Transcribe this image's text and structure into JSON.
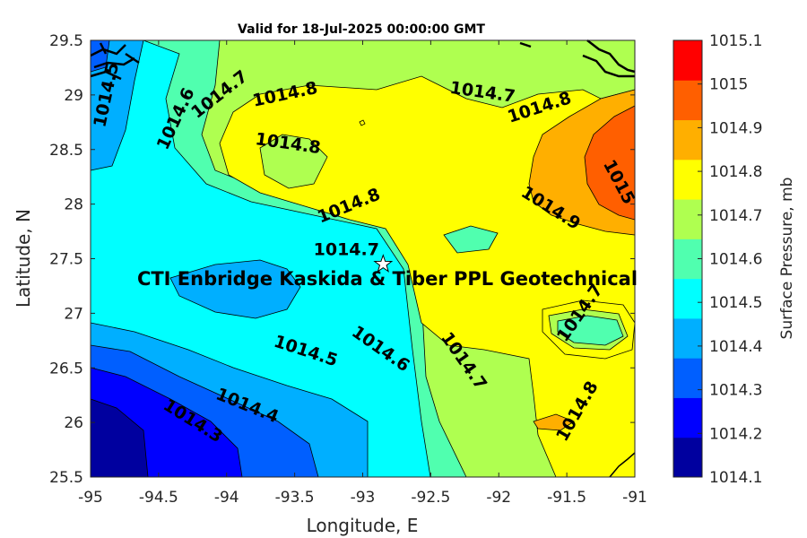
{
  "title": "Valid for 18-Jul-2025 00:00:00 GMT",
  "xlabel": "Longitude, E",
  "ylabel": "Latitude, N",
  "colorbar_label": "Surface Pressure, mb",
  "annotation": "CTI Enbridge Kaskida & Tiber PPL Geotechnical",
  "chart_data": {
    "type": "heatmap",
    "title": "Valid for 18-Jul-2025 00:00:00 GMT",
    "xlabel": "Longitude, E",
    "ylabel": "Latitude, N",
    "xlim": [
      -95,
      -91
    ],
    "ylim": [
      25.5,
      29.5
    ],
    "x_ticks": [
      -95,
      -94.5,
      -94,
      -93.5,
      -93,
      -92.5,
      -92,
      -91.5,
      -91
    ],
    "x_tick_labels": [
      "-95",
      "-94.5",
      "-94",
      "-93.5",
      "-93",
      "-92.5",
      "-92",
      "-91.5",
      "-91"
    ],
    "y_ticks": [
      25.5,
      26,
      26.5,
      27,
      27.5,
      28,
      28.5,
      29,
      29.5
    ],
    "y_tick_labels": [
      "25.5",
      "26",
      "26.5",
      "27",
      "27.5",
      "28",
      "28.5",
      "29",
      "29.5"
    ],
    "contour_levels": [
      1014.1,
      1014.2,
      1014.3,
      1014.4,
      1014.5,
      1014.6,
      1014.7,
      1014.8,
      1014.9,
      1015,
      1015.1
    ],
    "colorbar_colors": [
      "#00009f",
      "#0000ff",
      "#005fff",
      "#00afff",
      "#00ffff",
      "#50ffaf",
      "#afff50",
      "#ffff00",
      "#ffaf00",
      "#ff5f00",
      "#ff0000"
    ],
    "colorbar_tick_labels": [
      "1014.1",
      "1014.2",
      "1014.3",
      "1014.4",
      "1014.5",
      "1014.6",
      "1014.7",
      "1014.8",
      "1014.9",
      "1015",
      "1015.1"
    ],
    "contour_labels": [
      {
        "text": "1014.5",
        "lon": -94.88,
        "lat": 29.0,
        "rot": -78
      },
      {
        "text": "1014.6",
        "lon": -94.37,
        "lat": 28.78,
        "rot": -65
      },
      {
        "text": "1014.7",
        "lon": -94.05,
        "lat": 29.0,
        "rot": -38
      },
      {
        "text": "1014.8",
        "lon": -93.57,
        "lat": 29.0,
        "rot": -12
      },
      {
        "text": "1014.8",
        "lon": -93.55,
        "lat": 28.55,
        "rot": 8
      },
      {
        "text": "1014.7",
        "lon": -92.12,
        "lat": 29.02,
        "rot": 8
      },
      {
        "text": "1014.8",
        "lon": -91.7,
        "lat": 28.88,
        "rot": -18
      },
      {
        "text": "1015",
        "lon": -91.12,
        "lat": 28.2,
        "rot": 62
      },
      {
        "text": "1014.9",
        "lon": -91.62,
        "lat": 27.96,
        "rot": 32
      },
      {
        "text": "1014.8",
        "lon": -93.1,
        "lat": 27.98,
        "rot": -22
      },
      {
        "text": "1014.7",
        "lon": -93.12,
        "lat": 27.58,
        "rot": 0
      },
      {
        "text": "1014.7",
        "lon": -91.4,
        "lat": 27.0,
        "rot": -55
      },
      {
        "text": "1014.5",
        "lon": -93.42,
        "lat": 26.65,
        "rot": 18
      },
      {
        "text": "1014.6",
        "lon": -92.87,
        "lat": 26.67,
        "rot": 35
      },
      {
        "text": "1014.7",
        "lon": -92.26,
        "lat": 26.56,
        "rot": 55
      },
      {
        "text": "1014.8",
        "lon": -91.42,
        "lat": 26.1,
        "rot": -60
      },
      {
        "text": "1014.4",
        "lon": -93.85,
        "lat": 26.15,
        "rot": 22
      },
      {
        "text": "1014.3",
        "lon": -94.25,
        "lat": 26.01,
        "rot": 32
      }
    ],
    "marker": {
      "symbol": "star",
      "lon": -92.85,
      "lat": 27.45
    }
  }
}
